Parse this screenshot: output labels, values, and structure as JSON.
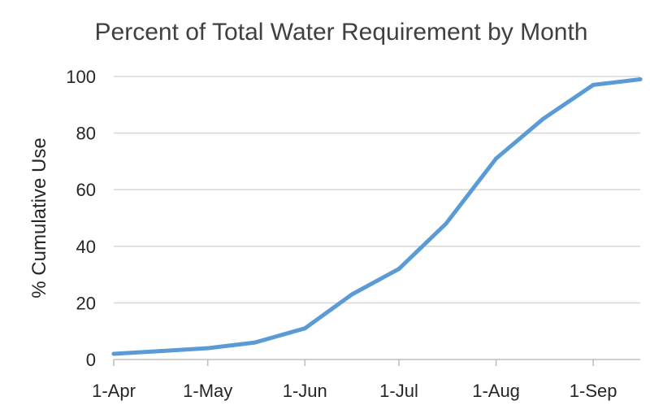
{
  "chart_data": {
    "type": "line",
    "title": "Percent of Total Water Requirement by Month",
    "xlabel": "",
    "ylabel": "% Cumulative Use",
    "ylim": [
      0,
      100
    ],
    "yticks": [
      0,
      20,
      40,
      60,
      80,
      100
    ],
    "x_unit": "day of season (0 = 1-Apr)",
    "xlim": [
      0,
      168
    ],
    "xticks": [
      {
        "label": "1-Apr",
        "day": 0
      },
      {
        "label": "1-May",
        "day": 30
      },
      {
        "label": "1-Jun",
        "day": 61
      },
      {
        "label": "1-Jul",
        "day": 91
      },
      {
        "label": "1-Aug",
        "day": 122
      },
      {
        "label": "1-Sep",
        "day": 153
      }
    ],
    "grid": true,
    "legend": "none",
    "colors": {
      "series": "#5b9bd5",
      "grid": "#d9d9d9",
      "axis": "#bfbfbf",
      "text": "#262626",
      "title": "#404040"
    },
    "series": [
      {
        "name": "% Cumulative Use",
        "x": [
          0,
          15,
          30,
          45,
          61,
          76,
          91,
          106,
          122,
          137,
          153,
          168
        ],
        "y": [
          2,
          3,
          4,
          6,
          11,
          23,
          32,
          48,
          71,
          85,
          97,
          99
        ]
      }
    ]
  }
}
